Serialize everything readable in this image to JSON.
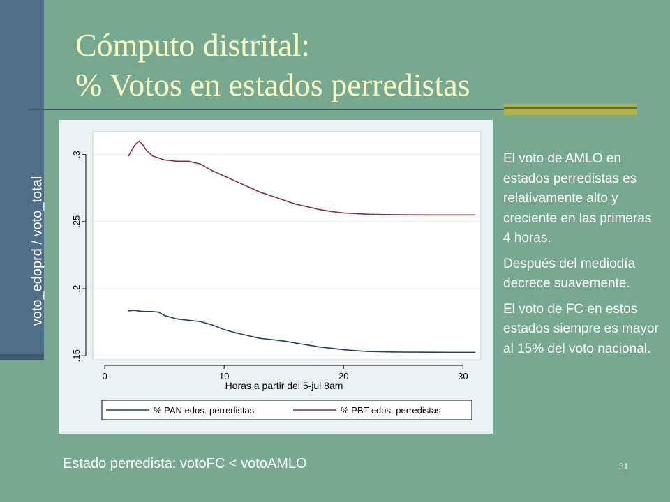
{
  "slide": {
    "title_line1": "Cómputo distrital:",
    "title_line2": "% Votos en estados perredistas",
    "vertical_label": "voto_edoprd / voto_total",
    "notes": [
      "El voto de AMLO en estados perredistas es relativamente alto y creciente en las primeras 4 horas.",
      "Después del mediodía decrece suavemente.",
      "El voto de FC en estos estados siempre es mayor al 15% del voto nacional."
    ],
    "footer_note": "Estado perredista: votoFC < votoAMLO",
    "slide_number": "31",
    "colors": {
      "background": "#77A890",
      "sidebar": "#4E6F87",
      "title": "#FFFFC4",
      "accent": "#B4B44C"
    }
  },
  "chart_data": {
    "type": "line",
    "xlabel": "Horas a partir del 5-jul 8am",
    "ylabel": "",
    "xlim": [
      -1,
      31.5
    ],
    "ylim": [
      0.147,
      0.317
    ],
    "x_ticks": [
      0,
      10,
      20,
      30
    ],
    "x_tick_labels": [
      "0",
      "10",
      "20",
      "30"
    ],
    "y_ticks": [
      0.15,
      0.2,
      0.25,
      0.3
    ],
    "y_tick_labels": [
      ".15",
      ".2",
      ".25",
      ".3"
    ],
    "grid": true,
    "legend": "bottom",
    "series": [
      {
        "name": "% PAN edos. perredistas",
        "color": "#1F3F6E",
        "x": [
          2.0,
          2.5,
          3.0,
          3.5,
          4.0,
          4.5,
          5.0,
          6.0,
          7.0,
          8.0,
          9.0,
          10.0,
          11.0,
          12.0,
          13.0,
          14.0,
          15.0,
          16.0,
          17.0,
          18.0,
          19.0,
          20.0,
          21.0,
          22.0,
          23.0,
          24.0,
          25.0,
          27.0,
          29.0,
          31.0
        ],
        "y": [
          0.1835,
          0.1838,
          0.1832,
          0.183,
          0.183,
          0.1825,
          0.18,
          0.1775,
          0.1765,
          0.1755,
          0.173,
          0.1695,
          0.167,
          0.165,
          0.163,
          0.162,
          0.161,
          0.1595,
          0.158,
          0.1565,
          0.1555,
          0.1545,
          0.1538,
          0.1532,
          0.153,
          0.1528,
          0.1527,
          0.1526,
          0.1525,
          0.1525
        ]
      },
      {
        "name": "% PBT edos. perredistas",
        "color": "#8B2C3A",
        "x": [
          2.0,
          2.3,
          2.6,
          2.9,
          3.2,
          3.5,
          4.0,
          5.0,
          6.0,
          7.0,
          8.0,
          9.0,
          10.0,
          11.0,
          12.0,
          13.0,
          14.0,
          15.0,
          16.0,
          17.0,
          18.0,
          19.0,
          20.0,
          21.0,
          22.0,
          23.0,
          24.0,
          25.0,
          27.0,
          29.0,
          31.0
        ],
        "y": [
          0.299,
          0.304,
          0.308,
          0.31,
          0.307,
          0.303,
          0.299,
          0.296,
          0.295,
          0.295,
          0.293,
          0.288,
          0.284,
          0.28,
          0.276,
          0.272,
          0.269,
          0.266,
          0.263,
          0.261,
          0.259,
          0.2575,
          0.2565,
          0.256,
          0.2555,
          0.2553,
          0.2552,
          0.2551,
          0.255,
          0.255,
          0.255
        ]
      }
    ]
  }
}
